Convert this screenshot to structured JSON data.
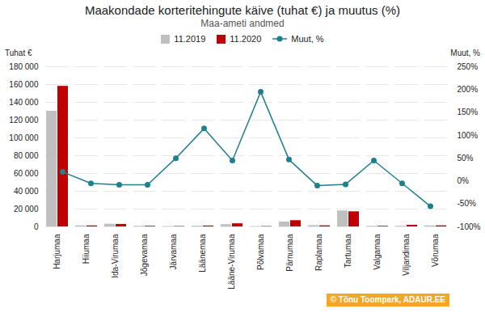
{
  "chart_data": {
    "type": "bar",
    "title": "Maakondade korteritehingute käive (tuhat €) ja muutus (%)",
    "subtitle": "Maa-ameti andmed",
    "ylabel": "Tuhat €",
    "y2label": "Muut, %",
    "categories": [
      "Harjumaa",
      "Hiiumaa",
      "Ida-Virumaa",
      "Jõgevamaa",
      "Järvamaa",
      "Läänemaa",
      "Lääne-Virumaa",
      "Põlvamaa",
      "Pärnumaa",
      "Raplamaa",
      "Tartumaa",
      "Valgamaa",
      "Viljandimaa",
      "Võrumaa"
    ],
    "series": [
      {
        "name": "11.2019",
        "color": "#c0c0c0",
        "values": [
          130000,
          1200,
          3000,
          700,
          400,
          800,
          2500,
          400,
          5500,
          1500,
          18000,
          700,
          700,
          1200
        ]
      },
      {
        "name": "11.2020",
        "color": "#c00000",
        "values": [
          158000,
          1100,
          2800,
          700,
          400,
          1000,
          3500,
          400,
          7000,
          1200,
          17000,
          700,
          1800,
          1200
        ]
      },
      {
        "name": "Muut, %",
        "type": "line",
        "axis": "y2",
        "color": "#1f7f8c",
        "marker": "circle",
        "values": [
          20,
          -5,
          -8,
          -8,
          50,
          115,
          45,
          195,
          47,
          -10,
          -7,
          45,
          -5,
          -55
        ]
      }
    ],
    "ylim": [
      0,
      180000
    ],
    "yticks": [
      0,
      {
        "value": 20000,
        "label": "20 000"
      },
      {
        "value": 40000,
        "label": "40 000"
      },
      {
        "value": 60000,
        "label": "60 000"
      },
      {
        "value": 80000,
        "label": "80 000"
      },
      {
        "value": 100000,
        "label": "100 000"
      },
      {
        "value": 120000,
        "label": "120 000"
      },
      {
        "value": 140000,
        "label": "140 000"
      },
      {
        "value": 160000,
        "label": "160 000"
      },
      {
        "value": 180000,
        "label": "180 000"
      }
    ],
    "y2lim": [
      -100,
      250
    ],
    "y2ticks": [
      {
        "value": -100,
        "label": "-100%"
      },
      {
        "value": -50,
        "label": "-50%"
      },
      {
        "value": 0,
        "label": "0%"
      },
      {
        "value": 50,
        "label": "50%"
      },
      {
        "value": 100,
        "label": "100%"
      },
      {
        "value": 150,
        "label": "150%"
      },
      {
        "value": 200,
        "label": "200%"
      },
      {
        "value": 250,
        "label": "250%"
      }
    ],
    "grid": true,
    "legend": "top",
    "annotations": [
      {
        "text": "© Tõnu Toompark, ADAUR.EE",
        "color": "#f5a623"
      }
    ]
  }
}
